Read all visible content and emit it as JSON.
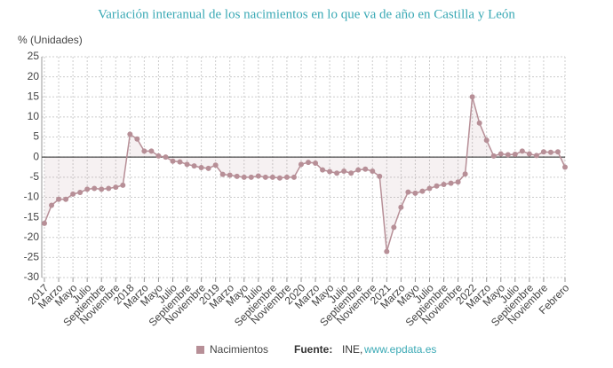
{
  "chart_data": {
    "type": "line",
    "title": "Variación interanual de los nacimientos en lo que va de año en Castilla y León",
    "y_label": "% (Unidades)",
    "categories": [
      "2017",
      null,
      "Marzo",
      null,
      "Mayo",
      null,
      "Julio",
      null,
      "Septiembre",
      null,
      "Noviembre",
      null,
      "2018",
      null,
      "Marzo",
      null,
      "Mayo",
      null,
      "Julio",
      null,
      "Septiembre",
      null,
      "Noviembre",
      null,
      "2019",
      null,
      "Marzo",
      null,
      "Mayo",
      null,
      "Julio",
      null,
      "Septiembre",
      null,
      "Noviembre",
      null,
      "2020",
      null,
      "Marzo",
      null,
      "Mayo",
      null,
      "Julio",
      null,
      "Septiembre",
      null,
      "Noviembre",
      null,
      "2021",
      null,
      "Marzo",
      null,
      "Mayo",
      null,
      "Julio",
      null,
      "Septiembre",
      null,
      "Noviembre",
      null,
      "2022",
      null,
      "Marzo",
      null,
      "Mayo",
      null,
      "Julio",
      null,
      "Septiembre",
      null,
      "Noviembre",
      null,
      null,
      "Febrero"
    ],
    "series": [
      {
        "name": "Nacimientos",
        "color": "#b78f97",
        "values": [
          -16.5,
          -12,
          -10.5,
          -10.5,
          -9.2,
          -8.8,
          -8,
          -7.8,
          -8,
          -7.8,
          -7.5,
          -7,
          5.7,
          4.5,
          1.5,
          1.5,
          0.3,
          0,
          -1,
          -1.2,
          -1.8,
          -2.2,
          -2.6,
          -2.8,
          -2,
          -4.3,
          -4.5,
          -4.8,
          -5,
          -5,
          -4.7,
          -5,
          -5,
          -5.2,
          -5,
          -5,
          -1.8,
          -1.3,
          -1.5,
          -3.2,
          -3.6,
          -4,
          -3.5,
          -4,
          -3.2,
          -3,
          -3.5,
          -4.8,
          -23.5,
          -17.5,
          -12.5,
          -8.7,
          -9,
          -8.5,
          -7.8,
          -7.2,
          -6.8,
          -6.5,
          -6.2,
          -4.2,
          15,
          8.5,
          4.2,
          0.3,
          0.8,
          0.6,
          0.7,
          1.5,
          0.8,
          0.4,
          1.3,
          1.2,
          1.3,
          -2.5
        ]
      }
    ],
    "ylim": [
      -30,
      25
    ],
    "yticks": [
      -30,
      -25,
      -20,
      -15,
      -10,
      -5,
      0,
      5,
      10,
      15,
      20,
      25
    ],
    "grid": true,
    "source_label": "Fuente:",
    "source": "INE,",
    "source_url": "www.epdata.es"
  }
}
